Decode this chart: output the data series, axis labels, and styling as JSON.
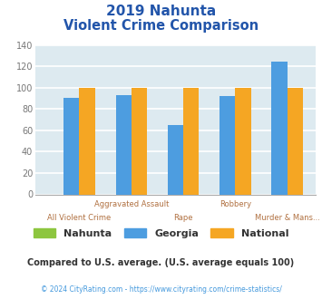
{
  "title_line1": "2019 Nahunta",
  "title_line2": "Violent Crime Comparison",
  "categories": [
    "All Violent Crime",
    "Aggravated Assault",
    "Rape",
    "Robbery",
    "Murder & Mans..."
  ],
  "nahunta": [
    0,
    0,
    0,
    0,
    0
  ],
  "georgia": [
    90,
    93,
    65,
    92,
    124
  ],
  "national": [
    100,
    100,
    100,
    100,
    100
  ],
  "nahunta_color": "#8dc63f",
  "georgia_color": "#4d9de0",
  "national_color": "#f5a623",
  "title_color": "#2255aa",
  "bg_color": "#ddeaf0",
  "grid_color": "#ffffff",
  "tick_label_color": "#b07040",
  "ytick_color": "#777777",
  "ylim": [
    0,
    140
  ],
  "yticks": [
    0,
    20,
    40,
    60,
    80,
    100,
    120,
    140
  ],
  "footer_text": "Compared to U.S. average. (U.S. average equals 100)",
  "copyright_text": "© 2024 CityRating.com - https://www.cityrating.com/crime-statistics/",
  "legend_labels": [
    "Nahunta",
    "Georgia",
    "National"
  ],
  "bar_width": 0.3
}
